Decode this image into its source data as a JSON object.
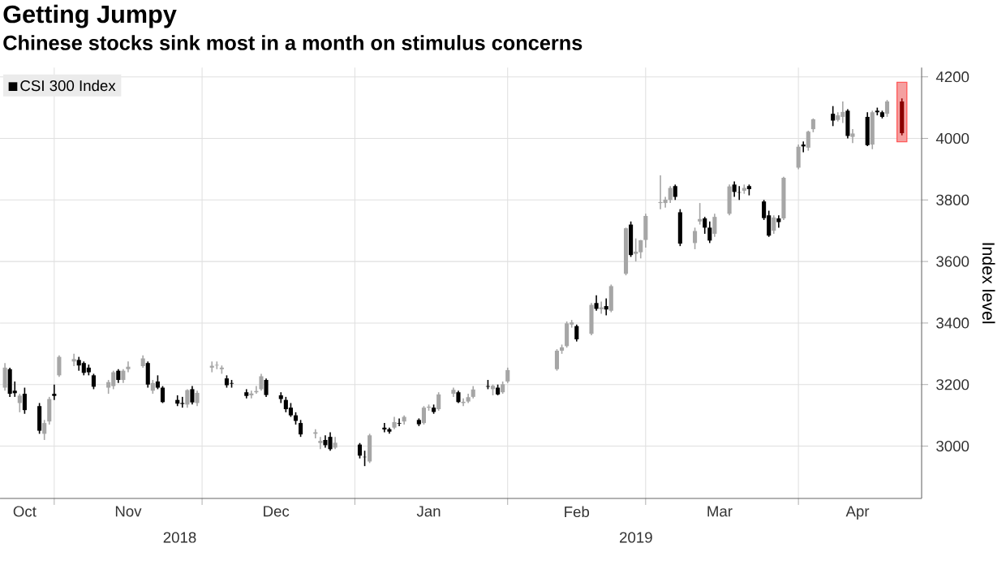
{
  "chart_data": {
    "type": "candlestick",
    "title": "Getting Jumpy",
    "subtitle": "Chinese stocks sink most in a month on stimulus concerns",
    "ylabel": "Index level",
    "x": [
      "2018-10-22",
      "2018-10-23",
      "2018-10-24",
      "2018-10-25",
      "2018-10-26",
      "2018-10-29",
      "2018-10-30",
      "2018-10-31",
      "2018-11-01",
      "2018-11-02",
      "2018-11-05",
      "2018-11-06",
      "2018-11-07",
      "2018-11-08",
      "2018-11-09",
      "2018-11-12",
      "2018-11-13",
      "2018-11-14",
      "2018-11-15",
      "2018-11-16",
      "2018-11-19",
      "2018-11-20",
      "2018-11-21",
      "2018-11-22",
      "2018-11-23",
      "2018-11-26",
      "2018-11-27",
      "2018-11-28",
      "2018-11-29",
      "2018-11-30",
      "2018-12-03",
      "2018-12-04",
      "2018-12-05",
      "2018-12-06",
      "2018-12-07",
      "2018-12-10",
      "2018-12-11",
      "2018-12-12",
      "2018-12-13",
      "2018-12-14",
      "2018-12-17",
      "2018-12-18",
      "2018-12-19",
      "2018-12-20",
      "2018-12-21",
      "2018-12-24",
      "2018-12-25",
      "2018-12-26",
      "2018-12-27",
      "2018-12-28",
      "2019-01-02",
      "2019-01-03",
      "2019-01-04",
      "2019-01-07",
      "2019-01-08",
      "2019-01-09",
      "2019-01-10",
      "2019-01-11",
      "2019-01-14",
      "2019-01-15",
      "2019-01-16",
      "2019-01-17",
      "2019-01-18",
      "2019-01-21",
      "2019-01-22",
      "2019-01-23",
      "2019-01-24",
      "2019-01-25",
      "2019-01-28",
      "2019-01-29",
      "2019-01-30",
      "2019-01-31",
      "2019-02-01",
      "2019-02-11",
      "2019-02-12",
      "2019-02-13",
      "2019-02-14",
      "2019-02-15",
      "2019-02-18",
      "2019-02-19",
      "2019-02-20",
      "2019-02-21",
      "2019-02-22",
      "2019-02-25",
      "2019-02-26",
      "2019-02-27",
      "2019-02-28",
      "2019-03-01",
      "2019-03-04",
      "2019-03-05",
      "2019-03-06",
      "2019-03-07",
      "2019-03-08",
      "2019-03-11",
      "2019-03-12",
      "2019-03-13",
      "2019-03-14",
      "2019-03-15",
      "2019-03-18",
      "2019-03-19",
      "2019-03-20",
      "2019-03-21",
      "2019-03-22",
      "2019-03-25",
      "2019-03-26",
      "2019-03-27",
      "2019-03-28",
      "2019-03-29",
      "2019-04-01",
      "2019-04-02",
      "2019-04-03",
      "2019-04-04",
      "2019-04-08",
      "2019-04-09",
      "2019-04-10",
      "2019-04-11",
      "2019-04-12",
      "2019-04-15",
      "2019-04-16",
      "2019-04-17",
      "2019-04-18",
      "2019-04-19",
      "2019-04-22"
    ],
    "series": [
      {
        "name": "CSI 300 Index",
        "color": "#000000",
        "ohlc": [
          [
            3190,
            3270,
            3180,
            3255
          ],
          [
            3250,
            3255,
            3160,
            3170
          ],
          [
            3180,
            3210,
            3160,
            3172
          ],
          [
            3140,
            3170,
            3110,
            3164
          ],
          [
            3170,
            3190,
            3105,
            3117
          ],
          [
            3130,
            3140,
            3040,
            3050
          ],
          [
            3040,
            3085,
            3020,
            3075
          ],
          [
            3080,
            3160,
            3070,
            3153
          ],
          [
            3170,
            3200,
            3150,
            3163
          ],
          [
            3230,
            3295,
            3225,
            3290
          ],
          [
            3275,
            3300,
            3260,
            3283
          ],
          [
            3280,
            3290,
            3245,
            3262
          ],
          [
            3270,
            3275,
            3230,
            3238
          ],
          [
            3255,
            3265,
            3230,
            3240
          ],
          [
            3230,
            3235,
            3185,
            3193
          ],
          [
            3190,
            3215,
            3170,
            3208
          ],
          [
            3195,
            3245,
            3185,
            3240
          ],
          [
            3245,
            3250,
            3205,
            3215
          ],
          [
            3215,
            3250,
            3205,
            3245
          ],
          [
            3250,
            3275,
            3240,
            3258
          ],
          [
            3260,
            3295,
            3255,
            3285
          ],
          [
            3270,
            3275,
            3190,
            3200
          ],
          [
            3180,
            3215,
            3170,
            3205
          ],
          [
            3210,
            3230,
            3185,
            3190
          ],
          [
            3190,
            3195,
            3140,
            3143
          ],
          [
            3150,
            3165,
            3130,
            3138
          ],
          [
            3140,
            3160,
            3125,
            3137
          ],
          [
            3135,
            3185,
            3125,
            3182
          ],
          [
            3185,
            3195,
            3135,
            3142
          ],
          [
            3140,
            3180,
            3130,
            3173
          ],
          [
            3255,
            3275,
            3240,
            3261
          ],
          [
            3262,
            3275,
            3250,
            3264
          ],
          [
            3250,
            3262,
            3235,
            3255
          ],
          [
            3220,
            3230,
            3190,
            3198
          ],
          [
            3205,
            3215,
            3190,
            3203
          ],
          [
            3175,
            3185,
            3155,
            3163
          ],
          [
            3165,
            3180,
            3155,
            3171
          ],
          [
            3175,
            3195,
            3170,
            3179
          ],
          [
            3185,
            3235,
            3180,
            3227
          ],
          [
            3215,
            3220,
            3160,
            3166
          ],
          [
            3165,
            3175,
            3140,
            3153
          ],
          [
            3150,
            3160,
            3110,
            3120
          ],
          [
            3125,
            3140,
            3095,
            3100
          ],
          [
            3100,
            3110,
            3070,
            3082
          ],
          [
            3075,
            3085,
            3030,
            3038
          ],
          [
            3040,
            3055,
            3025,
            3045
          ],
          [
            3010,
            3030,
            2990,
            3017
          ],
          [
            3020,
            3035,
            2995,
            3003
          ],
          [
            3030,
            3045,
            2985,
            2990
          ],
          [
            2995,
            3030,
            2990,
            3011
          ],
          [
            3005,
            3010,
            2960,
            2969
          ],
          [
            2965,
            2985,
            2935,
            2964
          ],
          [
            2950,
            3040,
            2945,
            3035
          ],
          [
            3060,
            3075,
            3045,
            3054
          ],
          [
            3055,
            3060,
            3040,
            3047
          ],
          [
            3060,
            3095,
            3055,
            3078
          ],
          [
            3075,
            3090,
            3065,
            3073
          ],
          [
            3080,
            3100,
            3070,
            3095
          ],
          [
            3085,
            3090,
            3065,
            3071
          ],
          [
            3075,
            3130,
            3070,
            3125
          ],
          [
            3125,
            3135,
            3115,
            3128
          ],
          [
            3125,
            3135,
            3105,
            3111
          ],
          [
            3120,
            3175,
            3115,
            3168
          ],
          [
            3170,
            3190,
            3160,
            3183
          ],
          [
            3175,
            3180,
            3140,
            3143
          ],
          [
            3140,
            3155,
            3130,
            3144
          ],
          [
            3145,
            3170,
            3140,
            3159
          ],
          [
            3160,
            3195,
            3155,
            3184
          ],
          [
            3195,
            3215,
            3185,
            3193
          ],
          [
            3185,
            3200,
            3165,
            3196
          ],
          [
            3190,
            3200,
            3165,
            3168
          ],
          [
            3175,
            3210,
            3170,
            3201
          ],
          [
            3210,
            3255,
            3205,
            3247
          ],
          [
            3250,
            3315,
            3245,
            3310
          ],
          [
            3310,
            3330,
            3300,
            3321
          ],
          [
            3325,
            3405,
            3320,
            3399
          ],
          [
            3395,
            3410,
            3385,
            3402
          ],
          [
            3390,
            3395,
            3340,
            3347
          ],
          [
            3365,
            3465,
            3360,
            3459
          ],
          [
            3465,
            3490,
            3440,
            3446
          ],
          [
            3445,
            3470,
            3430,
            3451
          ],
          [
            3455,
            3480,
            3425,
            3444
          ],
          [
            3440,
            3525,
            3435,
            3520
          ],
          [
            3560,
            3710,
            3555,
            3708
          ],
          [
            3720,
            3730,
            3615,
            3621
          ],
          [
            3625,
            3675,
            3600,
            3632
          ],
          [
            3630,
            3670,
            3610,
            3669
          ],
          [
            3670,
            3755,
            3645,
            3748
          ],
          [
            3790,
            3880,
            3770,
            3793
          ],
          [
            3790,
            3810,
            3775,
            3801
          ],
          [
            3800,
            3845,
            3790,
            3839
          ],
          [
            3845,
            3850,
            3800,
            3810
          ],
          [
            3760,
            3770,
            3650,
            3658
          ],
          [
            3660,
            3710,
            3640,
            3699
          ],
          [
            3730,
            3790,
            3720,
            3738
          ],
          [
            3740,
            3745,
            3690,
            3710
          ],
          [
            3710,
            3730,
            3660,
            3668
          ],
          [
            3690,
            3755,
            3680,
            3745
          ],
          [
            3755,
            3850,
            3750,
            3844
          ],
          [
            3850,
            3860,
            3810,
            3826
          ],
          [
            3825,
            3845,
            3800,
            3824
          ],
          [
            3830,
            3850,
            3820,
            3839
          ],
          [
            3845,
            3850,
            3815,
            3835
          ],
          [
            3795,
            3800,
            3735,
            3741
          ],
          [
            3750,
            3765,
            3680,
            3684
          ],
          [
            3700,
            3750,
            3690,
            3743
          ],
          [
            3740,
            3750,
            3710,
            3728
          ],
          [
            3740,
            3875,
            3735,
            3872
          ],
          [
            3905,
            3980,
            3900,
            3973
          ],
          [
            3980,
            3990,
            3955,
            3974
          ],
          [
            3970,
            4025,
            3960,
            4022
          ],
          [
            4030,
            4065,
            4020,
            4062
          ],
          [
            4080,
            4105,
            4040,
            4058
          ],
          [
            4060,
            4085,
            4055,
            4075
          ],
          [
            4070,
            4120,
            4050,
            4086
          ],
          [
            4090,
            4095,
            4000,
            4008
          ],
          [
            4005,
            4030,
            3985,
            4016
          ],
          [
            4070,
            4085,
            3975,
            3978
          ],
          [
            3980,
            4090,
            3965,
            4085
          ],
          [
            4090,
            4100,
            4075,
            4085
          ],
          [
            4085,
            4090,
            4065,
            4070
          ],
          [
            4080,
            4125,
            4070,
            4120
          ],
          [
            4120,
            4130,
            4010,
            4017
          ]
        ],
        "colors": [
          "#a6a6a6",
          "#000000",
          "#000000",
          "#a6a6a6",
          "#000000",
          "#000000",
          "#a6a6a6",
          "#a6a6a6",
          "#000000",
          "#a6a6a6",
          "#a6a6a6",
          "#000000",
          "#000000",
          "#000000",
          "#000000",
          "#a6a6a6",
          "#a6a6a6",
          "#000000",
          "#a6a6a6",
          "#a6a6a6",
          "#a6a6a6",
          "#000000",
          "#a6a6a6",
          "#000000",
          "#000000",
          "#000000",
          "#000000",
          "#a6a6a6",
          "#000000",
          "#a6a6a6",
          "#a6a6a6",
          "#a6a6a6",
          "#a6a6a6",
          "#000000",
          "#000000",
          "#000000",
          "#a6a6a6",
          "#a6a6a6",
          "#a6a6a6",
          "#000000",
          "#000000",
          "#000000",
          "#000000",
          "#000000",
          "#000000",
          "#a6a6a6",
          "#a6a6a6",
          "#000000",
          "#000000",
          "#a6a6a6",
          "#000000",
          "#000000",
          "#a6a6a6",
          "#000000",
          "#000000",
          "#a6a6a6",
          "#000000",
          "#a6a6a6",
          "#000000",
          "#a6a6a6",
          "#a6a6a6",
          "#000000",
          "#a6a6a6",
          "#a6a6a6",
          "#000000",
          "#a6a6a6",
          "#a6a6a6",
          "#a6a6a6",
          "#000000",
          "#a6a6a6",
          "#000000",
          "#a6a6a6",
          "#a6a6a6",
          "#a6a6a6",
          "#a6a6a6",
          "#a6a6a6",
          "#a6a6a6",
          "#000000",
          "#a6a6a6",
          "#000000",
          "#a6a6a6",
          "#000000",
          "#a6a6a6",
          "#a6a6a6",
          "#000000",
          "#a6a6a6",
          "#a6a6a6",
          "#a6a6a6",
          "#a6a6a6",
          "#a6a6a6",
          "#a6a6a6",
          "#000000",
          "#000000",
          "#a6a6a6",
          "#a6a6a6",
          "#000000",
          "#000000",
          "#a6a6a6",
          "#a6a6a6",
          "#000000",
          "#000000",
          "#a6a6a6",
          "#000000",
          "#000000",
          "#000000",
          "#a6a6a6",
          "#000000",
          "#a6a6a6",
          "#a6a6a6",
          "#000000",
          "#a6a6a6",
          "#a6a6a6",
          "#000000",
          "#a6a6a6",
          "#a6a6a6",
          "#000000",
          "#a6a6a6",
          "#000000",
          "#a6a6a6",
          "#000000",
          "#000000",
          "#a6a6a6",
          "#8b0000"
        ]
      }
    ],
    "xlim": [
      "2018-10-21",
      "2019-04-26"
    ],
    "xticks": [
      {
        "value": "2018-10-26",
        "label": "Oct"
      },
      {
        "value": "2018-11-01",
        "label": null
      },
      {
        "value": "2018-11-16",
        "label": "Nov"
      },
      {
        "value": "2018-12-01",
        "label": null
      },
      {
        "value": "2018-12-16",
        "label": "Dec"
      },
      {
        "value": "2019-01-01",
        "label": null
      },
      {
        "value": "2019-01-16",
        "label": "Jan"
      },
      {
        "value": "2019-02-01",
        "label": null
      },
      {
        "value": "2019-02-15",
        "label": "Feb"
      },
      {
        "value": "2019-03-01",
        "label": null
      },
      {
        "value": "2019-03-16",
        "label": "Mar"
      },
      {
        "value": "2019-04-01",
        "label": null
      },
      {
        "value": "2019-04-13",
        "label": "Apr"
      }
    ],
    "ylim": [
      2830,
      4230
    ],
    "yticks": [
      3000,
      3200,
      3400,
      3600,
      3800,
      4000,
      4200
    ],
    "grid": true,
    "legend": "top left",
    "bands": [
      {
        "axis": "x",
        "from": "2019-04-21",
        "to": "2019-04-23",
        "color": "#f4a0a0"
      }
    ],
    "annotations": [
      "2018",
      "2019"
    ]
  }
}
